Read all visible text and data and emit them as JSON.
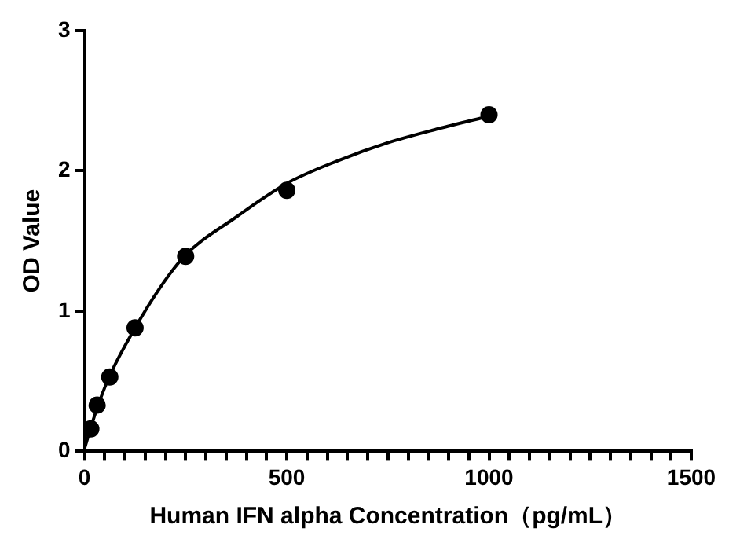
{
  "chart_data": {
    "type": "scatter",
    "xlabel": "Human IFN alpha Concentration（pg/mL）",
    "ylabel": "OD Value",
    "xlim": [
      0,
      1500
    ],
    "xticks": [
      0,
      {
        "value": 50,
        "label": null
      },
      {
        "value": 100,
        "label": null
      },
      {
        "value": 150,
        "label": null
      },
      {
        "value": 200,
        "label": null
      },
      {
        "value": 250,
        "label": null
      },
      {
        "value": 300,
        "label": null
      },
      {
        "value": 350,
        "label": null
      },
      {
        "value": 400,
        "label": null
      },
      {
        "value": 450,
        "label": null
      },
      500,
      {
        "value": 550,
        "label": null
      },
      {
        "value": 600,
        "label": null
      },
      {
        "value": 650,
        "label": null
      },
      {
        "value": 700,
        "label": null
      },
      {
        "value": 750,
        "label": null
      },
      {
        "value": 800,
        "label": null
      },
      {
        "value": 850,
        "label": null
      },
      {
        "value": 900,
        "label": null
      },
      {
        "value": 950,
        "label": null
      },
      1000,
      {
        "value": 1050,
        "label": null
      },
      {
        "value": 1100,
        "label": null
      },
      {
        "value": 1150,
        "label": null
      },
      {
        "value": 1200,
        "label": null
      },
      {
        "value": 1250,
        "label": null
      },
      {
        "value": 1300,
        "label": null
      },
      {
        "value": 1350,
        "label": null
      },
      {
        "value": 1400,
        "label": null
      },
      {
        "value": 1450,
        "label": null
      },
      1500
    ],
    "ylim": [
      0,
      3
    ],
    "yticks": [
      0,
      1,
      2,
      3
    ],
    "grid": false,
    "legend": false,
    "series": [
      {
        "type": "scatter",
        "color": "#000000",
        "marker": "circle",
        "x": [
          15.625,
          31.25,
          62.5,
          125,
          250,
          500,
          1000
        ],
        "values": [
          0.16,
          0.33,
          0.53,
          0.88,
          1.39,
          1.86,
          2.4
        ]
      },
      {
        "type": "line",
        "color": "#000000",
        "marker": "none",
        "line_style": "solid",
        "x": [
          0,
          15.625,
          31.25,
          62.5,
          125,
          187.5,
          250,
          375,
          500,
          625,
          750,
          875,
          1000
        ],
        "values": [
          0.02,
          0.17,
          0.31,
          0.54,
          0.88,
          1.17,
          1.4,
          1.67,
          1.91,
          2.07,
          2.2,
          2.3,
          2.39
        ]
      }
    ]
  }
}
